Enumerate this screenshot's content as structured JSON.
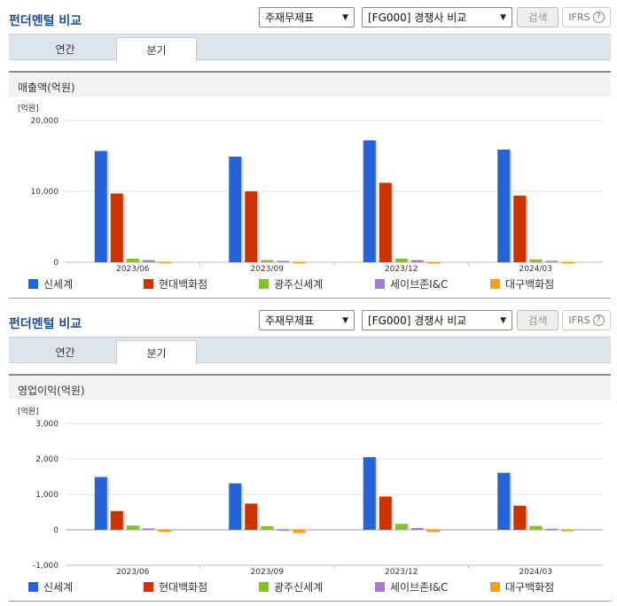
{
  "sections": [
    {
      "title": "펀더멘털 비교",
      "select1": "주재무제표",
      "select2": "[FG000] 경쟁사 비교",
      "search_label": "검색",
      "ifrs_label": "IFRS",
      "ifrs_help": "?",
      "tabs": [
        "연간",
        "분기"
      ],
      "active_tab": 1,
      "chart_title": "매출액(억원)"
    },
    {
      "title": "펀더멘털 비교",
      "select1": "주재무제표",
      "select2": "[FG000] 경쟁사 비교",
      "search_label": "검색",
      "ifrs_label": "IFRS",
      "ifrs_help": "?",
      "tabs": [
        "연간",
        "분기"
      ],
      "active_tab": 1,
      "chart_title": "영업이익(억원)"
    }
  ],
  "colors": {
    "title": "#1f4e96",
    "series": [
      "#2563d6",
      "#cc3300",
      "#84c225",
      "#a67ad4",
      "#f5a011"
    ]
  },
  "chart_data": [
    {
      "type": "bar",
      "title": "매출액(억원)",
      "unit_label": "[억원]",
      "categories": [
        "2023/06",
        "2023/09",
        "2023/12",
        "2024/03"
      ],
      "ylim": [
        0,
        20000
      ],
      "yticks": [
        0,
        10000,
        20000
      ],
      "ytick_labels": [
        "0",
        "10,000",
        "20,000"
      ],
      "grid": true,
      "series": [
        {
          "name": "신세계",
          "values": [
            15700,
            14900,
            17200,
            15900
          ]
        },
        {
          "name": "현대백화점",
          "values": [
            9700,
            10000,
            11200,
            9400
          ]
        },
        {
          "name": "광주신세계",
          "values": [
            500,
            300,
            500,
            400
          ]
        },
        {
          "name": "세이브존I&C",
          "values": [
            300,
            200,
            300,
            200
          ]
        },
        {
          "name": "대구백화점",
          "values": [
            80,
            60,
            70,
            60
          ]
        }
      ]
    },
    {
      "type": "bar",
      "title": "영업이익(억원)",
      "unit_label": "[억원]",
      "categories": [
        "2023/06",
        "2023/09",
        "2023/12",
        "2024/03"
      ],
      "ylim": [
        -1000,
        3000
      ],
      "yticks": [
        -1000,
        0,
        1000,
        2000,
        3000
      ],
      "ytick_labels": [
        "-1,000",
        "0",
        "1,000",
        "2,000",
        "3,000"
      ],
      "grid": true,
      "series": [
        {
          "name": "신세계",
          "values": [
            1490,
            1310,
            2050,
            1610
          ]
        },
        {
          "name": "현대백화점",
          "values": [
            530,
            740,
            940,
            680
          ]
        },
        {
          "name": "광주신세계",
          "values": [
            120,
            100,
            170,
            110
          ]
        },
        {
          "name": "세이브존I&C",
          "values": [
            40,
            20,
            50,
            30
          ]
        },
        {
          "name": "대구백화점",
          "values": [
            -60,
            -90,
            -60,
            -40
          ]
        }
      ]
    }
  ]
}
